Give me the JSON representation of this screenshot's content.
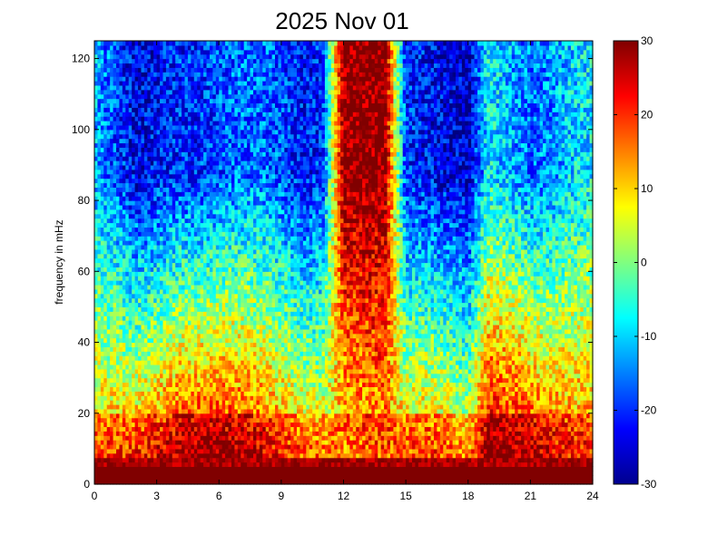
{
  "chart_data": {
    "type": "heatmap",
    "title": "2025 Nov 01",
    "xlabel": "",
    "ylabel": "frequency in mHz",
    "x_ticks": [
      0,
      3,
      6,
      9,
      12,
      15,
      18,
      21,
      24
    ],
    "y_ticks": [
      0,
      20,
      40,
      60,
      80,
      100,
      120
    ],
    "xlim": [
      0,
      24
    ],
    "ylim": [
      0,
      125
    ],
    "colorbar": {
      "colormap": "jet",
      "range": [
        -30,
        30
      ],
      "ticks": [
        30,
        20,
        10,
        0,
        -10,
        -20,
        -30
      ]
    },
    "intensity_profile": {
      "hours": [
        0,
        1,
        2,
        3,
        4,
        5,
        6,
        7,
        8,
        9,
        10,
        11,
        12,
        13,
        14,
        15,
        16,
        17,
        18,
        19,
        20,
        21,
        22,
        23,
        24
      ],
      "low_frequency_level": [
        12,
        14,
        15,
        18,
        22,
        24,
        24,
        22,
        20,
        16,
        12,
        10,
        8,
        10,
        12,
        12,
        14,
        12,
        8,
        26,
        24,
        22,
        18,
        16,
        15
      ],
      "high_frequency_level": [
        -12,
        -18,
        -24,
        -22,
        -20,
        -20,
        -18,
        -16,
        -16,
        -18,
        -22,
        -20,
        30,
        30,
        30,
        -20,
        -22,
        -24,
        -26,
        -8,
        -12,
        -16,
        -14,
        -10,
        -8
      ]
    }
  }
}
